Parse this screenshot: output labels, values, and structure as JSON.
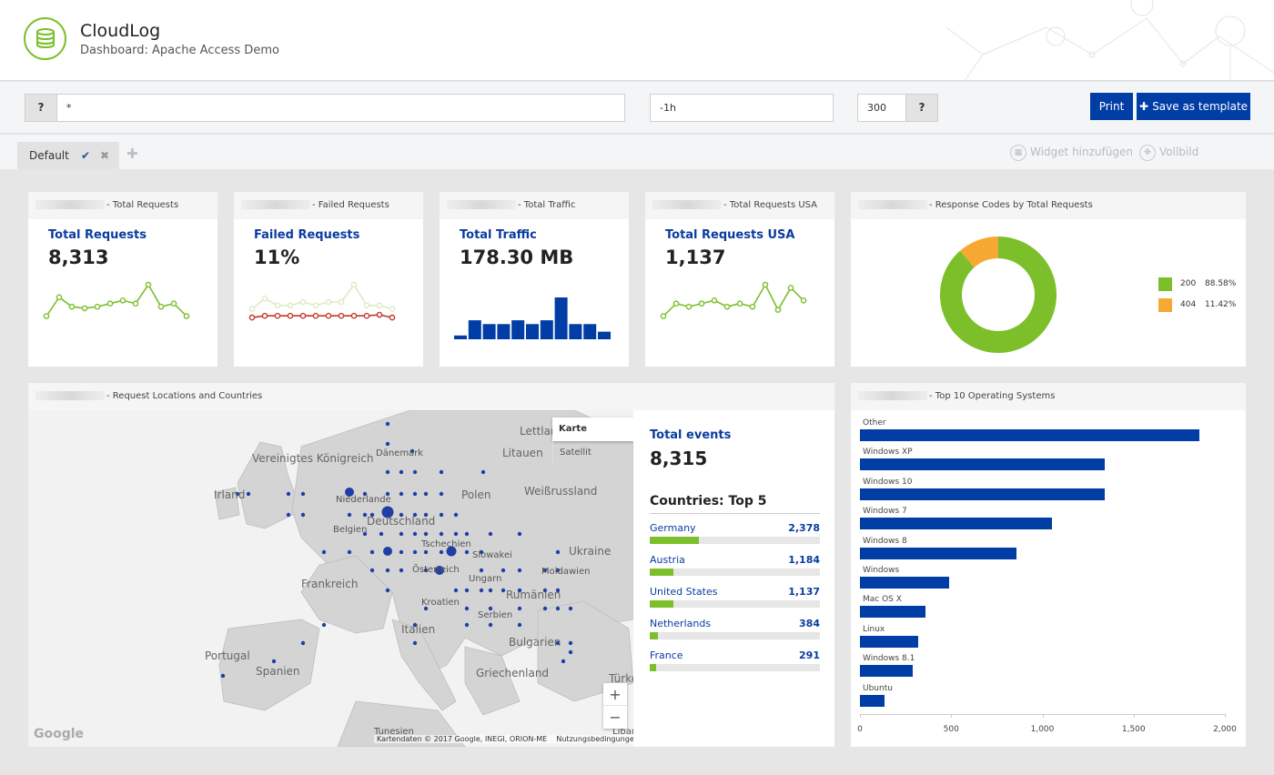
{
  "app": {
    "title": "CloudLog",
    "subtitle": "Dashboard: Apache Access Demo"
  },
  "toolbar": {
    "help_label": "?",
    "query_value": "*",
    "time_value": "-1h",
    "limit_value": "300",
    "limit_help_label": "?",
    "print_label": "Print",
    "save_template_label": "Save as template"
  },
  "tabs": {
    "items": [
      {
        "label": "Default"
      }
    ],
    "add_widget_label": "Widget hinzufügen",
    "fullscreen_label": "Vollbild"
  },
  "widgets": {
    "total_requests": {
      "header": "- Total Requests",
      "title": "Total Requests",
      "value": "8,313"
    },
    "failed_requests": {
      "header": "- Failed Requests",
      "title": "Failed Requests",
      "value": "11%"
    },
    "total_traffic": {
      "header": "- Total Traffic",
      "title": "Total Traffic",
      "value": "178.30 MB"
    },
    "total_requests_usa": {
      "header": "- Total Requests USA",
      "title": "Total Requests USA",
      "value": "1,137"
    },
    "response_codes": {
      "header": "- Response Codes by Total Requests"
    },
    "locations": {
      "header": "- Request Locations and Countries",
      "map_mode_map": "Karte",
      "map_mode_sat": "Satellit",
      "zoom_in": "+",
      "zoom_out": "−",
      "copyright": "Kartendaten © 2017 Google, INEGI, ORION-ME",
      "terms": "Nutzungsbedingungen",
      "google": "Google",
      "events_title": "Total events",
      "events_value": "8,315",
      "top5_title": "Countries: Top 5",
      "countries": [
        {
          "name": "Germany",
          "value": "2,378",
          "fraction": 0.29
        },
        {
          "name": "Austria",
          "value": "1,184",
          "fraction": 0.14
        },
        {
          "name": "United States",
          "value": "1,137",
          "fraction": 0.14
        },
        {
          "name": "Netherlands",
          "value": "384",
          "fraction": 0.05
        },
        {
          "name": "France",
          "value": "291",
          "fraction": 0.035
        }
      ],
      "map_labels": [
        "Vereinigtes Königreich",
        "Irland",
        "Dänemark",
        "Litauen",
        "Lettland",
        "Niederlande",
        "Polen",
        "Weißrussland",
        "Belgien",
        "Deutschland",
        "Tschechien",
        "Ukraine",
        "Frankreich",
        "Slowakei",
        "Österreich",
        "Ungarn",
        "Moldawien",
        "Rumänien",
        "Kroatien",
        "Serbien",
        "Italien",
        "Portugal",
        "Spanien",
        "Bulgarien",
        "Griechenland",
        "Tunesien",
        "Türkei",
        "Libanon"
      ]
    },
    "operating_systems": {
      "header": "- Top 10 Operating Systems"
    }
  },
  "chart_data": [
    {
      "type": "line",
      "title": "Total Requests",
      "series": [
        {
          "values": [
            1,
            7,
            4,
            3.5,
            4,
            5,
            6,
            5,
            11,
            4,
            5,
            1
          ]
        }
      ]
    },
    {
      "type": "line",
      "title": "Failed Requests",
      "series": [
        {
          "values": [
            3,
            6,
            4,
            4,
            5,
            4,
            5,
            5,
            10,
            4,
            4,
            3
          ]
        },
        {
          "values": [
            0.5,
            1,
            1,
            1,
            1,
            1,
            1,
            1,
            1,
            1,
            1.3,
            0.5
          ]
        }
      ]
    },
    {
      "type": "bar",
      "title": "Total Traffic",
      "values": [
        1,
        5,
        4,
        4,
        5,
        4,
        5,
        11,
        4,
        4,
        2
      ]
    },
    {
      "type": "line",
      "title": "Total Requests USA",
      "series": [
        {
          "values": [
            1,
            5,
            4,
            5,
            6,
            4,
            5,
            4,
            11,
            3,
            10,
            6
          ]
        }
      ]
    },
    {
      "type": "pie",
      "title": "Response Codes by Total Requests",
      "categories": [
        "200",
        "404"
      ],
      "values": [
        88.58,
        11.42
      ],
      "labels": [
        "88.58%",
        "11.42%"
      ],
      "colors": [
        "#7cbf2a",
        "#f7a833"
      ]
    },
    {
      "type": "bar",
      "title": "Top 10 Operating Systems",
      "orientation": "horizontal",
      "categories": [
        "Other",
        "Windows XP",
        "Windows 10",
        "Windows 7",
        "Windows 8",
        "Windows",
        "Mac OS X",
        "Linux",
        "Windows 8.1",
        "Ubuntu"
      ],
      "values": [
        1860,
        1340,
        1340,
        1050,
        860,
        490,
        360,
        320,
        290,
        135
      ],
      "xlim": [
        0,
        2000
      ],
      "xticks": [
        "0",
        "500",
        "1,000",
        "1,500",
        "2,000"
      ],
      "color": "#003da5"
    }
  ]
}
